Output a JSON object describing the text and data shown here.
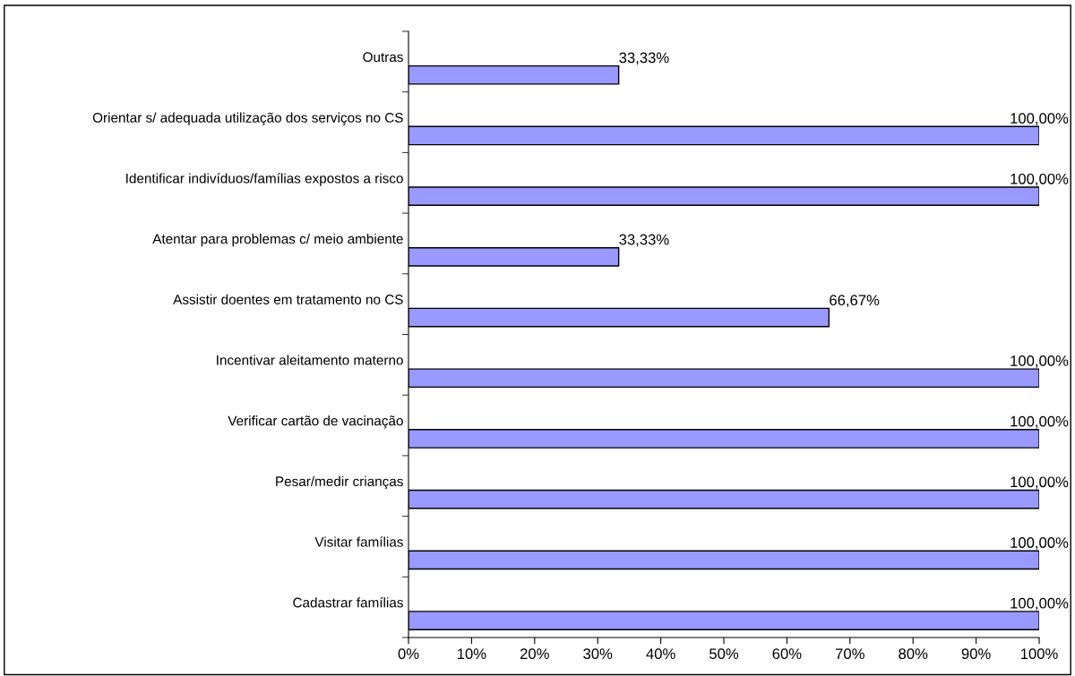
{
  "chart_data": {
    "type": "bar",
    "orientation": "horizontal",
    "categories": [
      "Outras",
      "Orientar s/ adequada utilização dos serviços no CS",
      "Identificar indivíduos/famílias expostos a risco",
      "Atentar para problemas c/ meio ambiente",
      "Assistir doentes em tratamento no CS",
      "Incentivar aleitamento materno",
      "Verificar cartão de vacinação",
      "Pesar/medir crianças",
      "Visitar famílias",
      "Cadastrar famílias"
    ],
    "values": [
      33.33,
      100,
      100,
      33.33,
      66.67,
      100,
      100,
      100,
      100,
      100
    ],
    "value_labels": [
      "33,33%",
      "100,00%",
      "100,00%",
      "33,33%",
      "66,67%",
      "100,00%",
      "100,00%",
      "100,00%",
      "100,00%",
      "100,00%"
    ],
    "color": "#9999ff",
    "xlim": [
      0,
      100
    ],
    "xticks": [
      {
        "value": 0,
        "label": "0%"
      },
      {
        "value": 10,
        "label": "10%"
      },
      {
        "value": 20,
        "label": "20%"
      },
      {
        "value": 30,
        "label": "30%"
      },
      {
        "value": 40,
        "label": "40%"
      },
      {
        "value": 50,
        "label": "50%"
      },
      {
        "value": 60,
        "label": "60%"
      },
      {
        "value": 70,
        "label": "70%"
      },
      {
        "value": 80,
        "label": "80%"
      },
      {
        "value": 90,
        "label": "90%"
      },
      {
        "value": 100,
        "label": "100%"
      }
    ],
    "grid": false,
    "legend": false
  }
}
